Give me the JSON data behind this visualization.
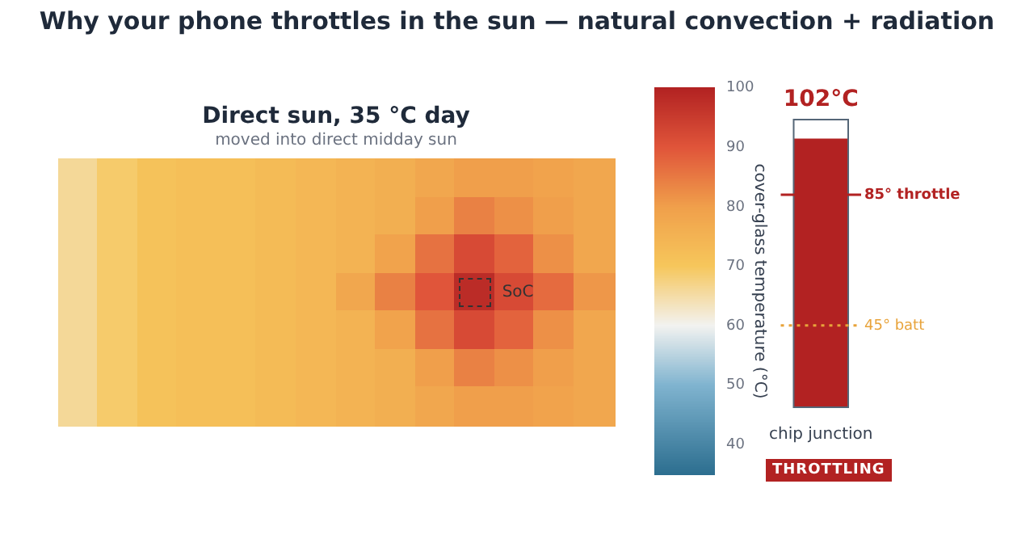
{
  "chart_data": [
    {
      "type": "other",
      "title": "Why your phone throttles in the sun — natural convection + radiation"
    },
    {
      "type": "heatmap",
      "title": "Direct sun, 35 °C day",
      "subtitle": "moved into direct midday sun",
      "clabel": "cover-glass temperature (°C)",
      "clim": [
        35,
        100
      ],
      "cticks": [
        40,
        50,
        60,
        70,
        80,
        90,
        100
      ],
      "annotations": [
        "SoC"
      ],
      "categories": [
        null,
        null,
        null,
        null,
        null,
        null,
        null,
        null,
        null,
        null,
        null,
        null,
        null,
        null
      ],
      "y_categories": [
        null,
        null,
        null,
        null,
        null,
        null,
        null
      ],
      "cells": [
        [
          66,
          69,
          71,
          72,
          72,
          73,
          74,
          75,
          76,
          78,
          80,
          80,
          79,
          78
        ],
        [
          66,
          69,
          71,
          72,
          72,
          73,
          74,
          75,
          76,
          80,
          84,
          82,
          80,
          78
        ],
        [
          66,
          69,
          71,
          72,
          72,
          73,
          74,
          75,
          79,
          86,
          92,
          88,
          82,
          78
        ],
        [
          66,
          69,
          71,
          72,
          72,
          73,
          74,
          78,
          84,
          90,
          98,
          92,
          87,
          81
        ],
        [
          66,
          69,
          71,
          72,
          72,
          73,
          74,
          75,
          79,
          86,
          92,
          88,
          82,
          78
        ],
        [
          66,
          69,
          71,
          72,
          72,
          73,
          74,
          75,
          76,
          80,
          84,
          82,
          80,
          78
        ],
        [
          66,
          69,
          71,
          72,
          72,
          73,
          74,
          75,
          76,
          78,
          80,
          80,
          79,
          78
        ]
      ]
    },
    {
      "type": "bar",
      "categories": [
        "chip junction"
      ],
      "values": [
        102
      ],
      "value_labels": [
        "102°C"
      ],
      "color": "#b22222",
      "ylim": [
        20,
        108
      ],
      "tick_labels": "x",
      "ref_lines": [
        {
          "axis": "y",
          "value": 85,
          "label": "85° throttle",
          "color": "#b22222",
          "line_style": "solid"
        },
        {
          "axis": "y",
          "value": 45,
          "label": "45° batt",
          "color": "#e8a33a",
          "line_style": "dotted"
        }
      ],
      "annotations": [
        "THROTTLING"
      ]
    }
  ]
}
